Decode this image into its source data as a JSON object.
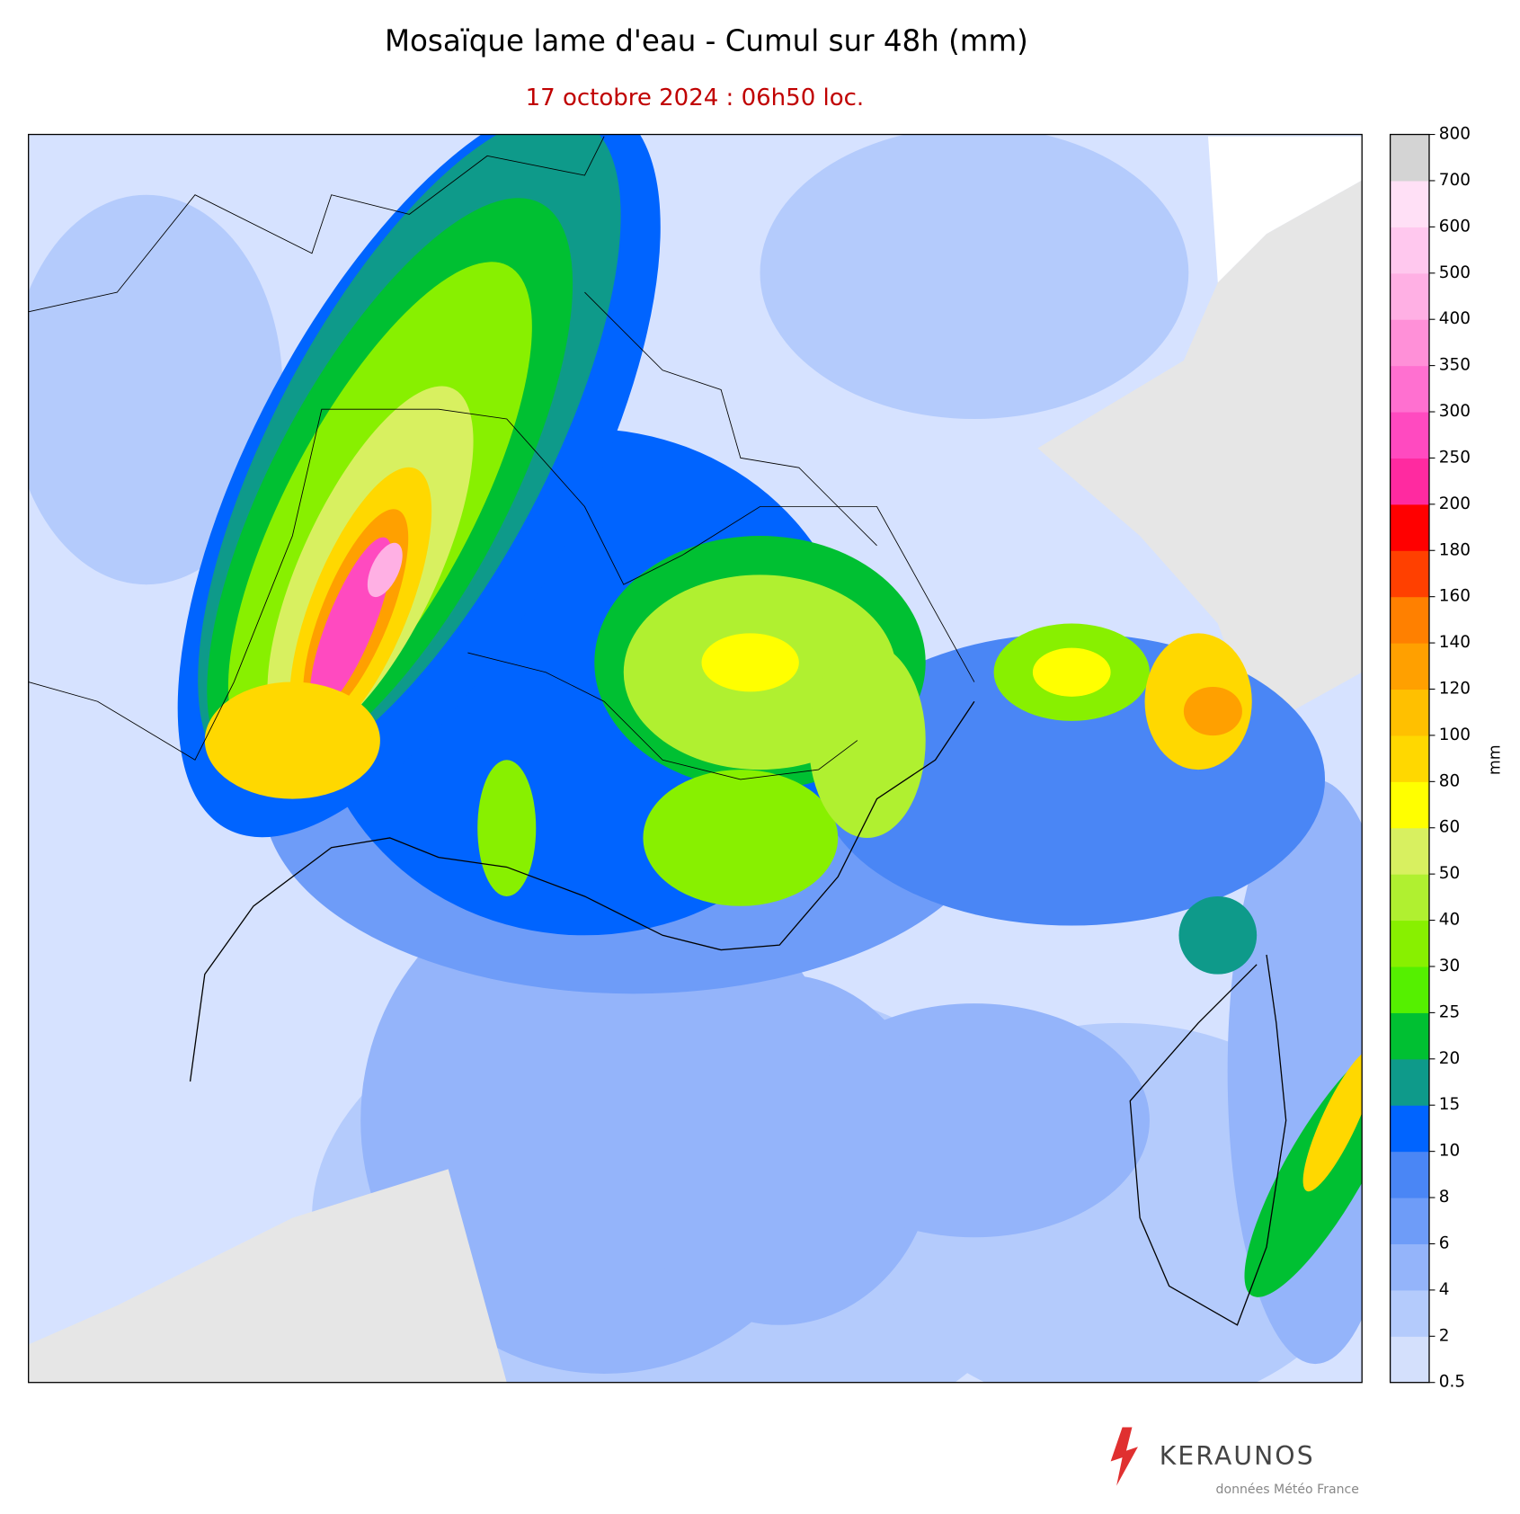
{
  "header": {
    "title": "Mosaïque lame d'eau - Cumul sur 48h (mm)",
    "subtitle": "17 octobre 2024 : 06h50 loc."
  },
  "colorbar": {
    "label": "mm",
    "ticks": [
      0.5,
      2,
      4,
      6,
      8,
      10,
      15,
      20,
      25,
      30,
      40,
      50,
      60,
      80,
      100,
      120,
      140,
      160,
      180,
      200,
      250,
      300,
      350,
      400,
      500,
      600,
      700,
      800
    ],
    "colors": [
      "#d4e0fc",
      "#b4cbfc",
      "#94b4fa",
      "#6e9cf8",
      "#4a86f5",
      "#0064ff",
      "#0e9a8a",
      "#00c032",
      "#55f000",
      "#88f000",
      "#b0f030",
      "#d8f060",
      "#ffff00",
      "#ffd800",
      "#ffc000",
      "#ffa000",
      "#ff8000",
      "#ff4000",
      "#ff0000",
      "#ff2aa0",
      "#ff4ac0",
      "#ff70d0",
      "#ff90d8",
      "#ffb0e4",
      "#ffc8ee",
      "#ffe0f6",
      "#d4d4d4"
    ]
  },
  "footer": {
    "brand": "KERAUNOS",
    "credit": "données Météo France"
  }
}
